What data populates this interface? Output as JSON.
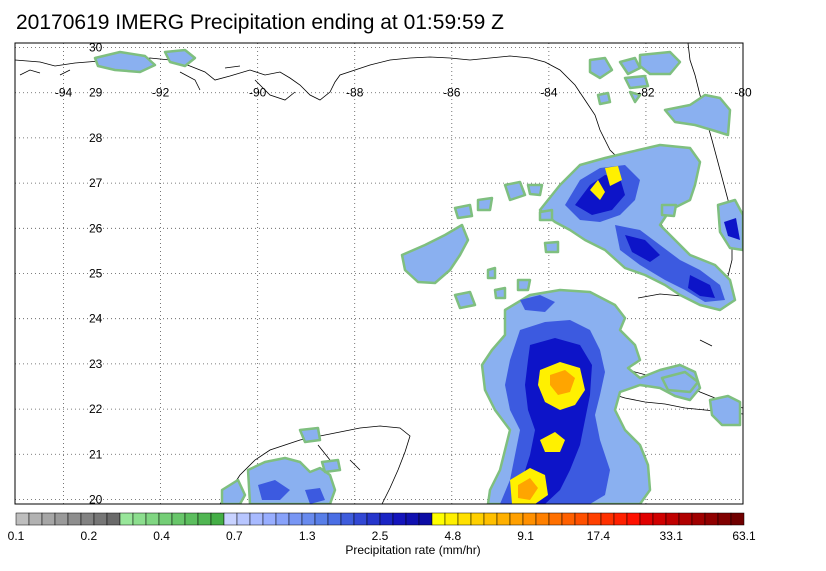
{
  "title": "20170619 IMERG Precipitation ending at 01:59:59 Z",
  "map": {
    "lon_labels": [
      "-94",
      "-92",
      "-90",
      "-88",
      "-86",
      "-84",
      "-82",
      "-80"
    ],
    "lat_labels": [
      "30",
      "29",
      "28",
      "27",
      "26",
      "25",
      "24",
      "23",
      "22",
      "21",
      "20"
    ],
    "lon_range": [
      -95,
      -80
    ],
    "lat_range": [
      19.9,
      30.1
    ],
    "gridlines": true,
    "gridline_style": "dotted"
  },
  "colorbar": {
    "label": "Precipitation rate (mm/hr)",
    "tick_labels": [
      "0.1",
      "0.2",
      "0.4",
      "0.7",
      "1.3",
      "2.5",
      "4.8",
      "9.1",
      "17.4",
      "33.1",
      "63.1"
    ],
    "colors": [
      "#bebebe",
      "#b2b2b2",
      "#a6a6a6",
      "#9a9a9a",
      "#8e8e8e",
      "#828282",
      "#767676",
      "#6a6a6a",
      "#98e69a",
      "#8cde8e",
      "#80d682",
      "#74ce76",
      "#68c66a",
      "#5cbe5e",
      "#50b652",
      "#44ae46",
      "#c8d2ff",
      "#b8c6ff",
      "#a8baff",
      "#98aeff",
      "#88a2fa",
      "#7896f4",
      "#688aee",
      "#587ee8",
      "#4a6ee4",
      "#3e5cdc",
      "#3248d4",
      "#2636cc",
      "#1a24c4",
      "#1414bc",
      "#1010b0",
      "#0c0ca4",
      "#ffff00",
      "#fff000",
      "#ffe000",
      "#ffd000",
      "#ffc000",
      "#ffb000",
      "#ffa000",
      "#ff9000",
      "#ff8000",
      "#ff7000",
      "#ff6000",
      "#ff5000",
      "#ff4000",
      "#ff3000",
      "#ff2000",
      "#ff1000",
      "#e00000",
      "#d00000",
      "#c00000",
      "#b00000",
      "#a00000",
      "#900000",
      "#800000",
      "#700000"
    ]
  },
  "colors": {
    "outline_green": "#7fbf7f",
    "light_blue": "#8ab0f0",
    "mid_blue": "#3c5ae0",
    "dark_blue": "#0d14c8",
    "yellow": "#fff000",
    "orange": "#ffa500"
  }
}
